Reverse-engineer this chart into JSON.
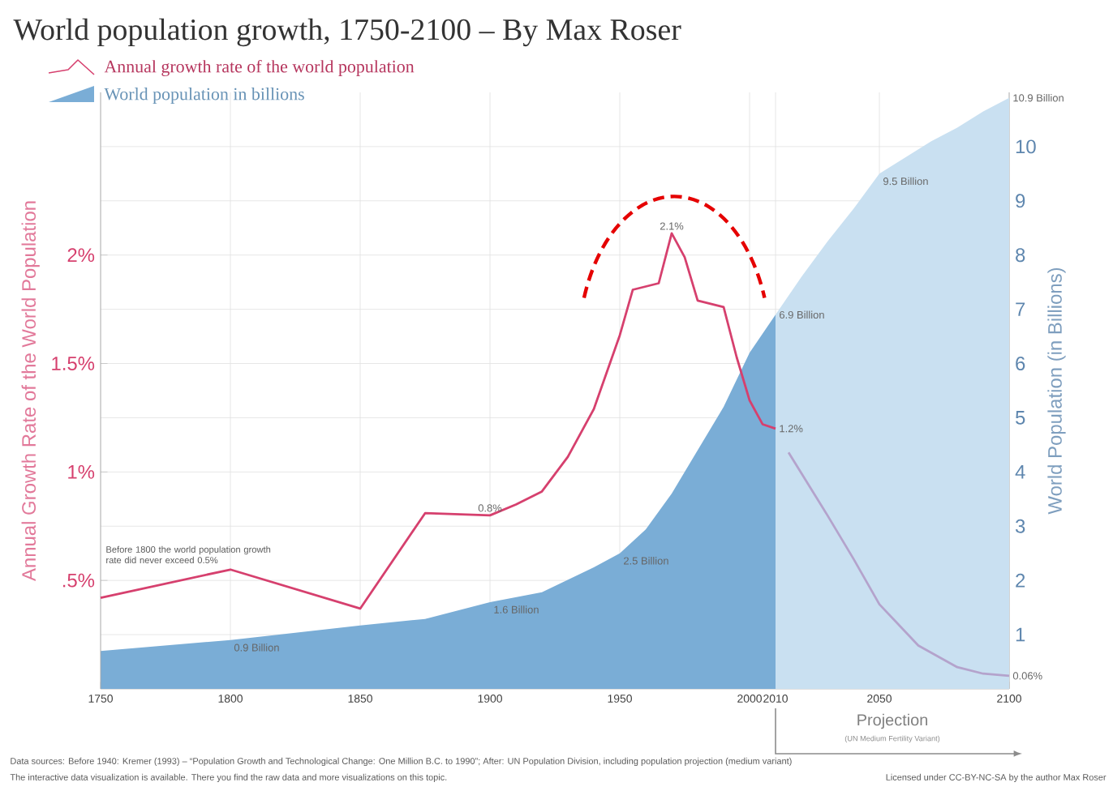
{
  "chart_data": {
    "type": "line",
    "title": "World population growth, 1750-2100 – By Max Roser",
    "ylabel": "Annual Growth Rate of the World Population",
    "y2label": "World Population (in Billions)",
    "xlim": [
      1750,
      2100
    ],
    "xticks": [
      1750,
      1800,
      1850,
      1900,
      1950,
      2000,
      2010,
      2050,
      2100
    ],
    "ylim": [
      0,
      2.75
    ],
    "yticks": [
      {
        "value": 0.5,
        "label": ".5%"
      },
      {
        "value": 1,
        "label": "1%"
      },
      {
        "value": 1.5,
        "label": "1.5%"
      },
      {
        "value": 2,
        "label": "2%"
      }
    ],
    "y2lim": [
      0,
      11
    ],
    "y2ticks": [
      1,
      2,
      3,
      4,
      5,
      6,
      7,
      8,
      9,
      10
    ],
    "grid": true,
    "legend": "top left",
    "series": [
      {
        "name": "Annual growth rate of the world population",
        "color": "#d6406e",
        "x": [
          1750,
          1800,
          1850,
          1875,
          1900,
          1910,
          1920,
          1930,
          1940,
          1950,
          1955,
          1965,
          1970,
          1975,
          1980,
          1990,
          1995,
          2000,
          2005,
          2010
        ],
        "values": [
          0.42,
          0.55,
          0.37,
          0.81,
          0.8,
          0.85,
          0.91,
          1.07,
          1.29,
          1.63,
          1.84,
          1.87,
          2.1,
          1.99,
          1.79,
          1.76,
          1.53,
          1.33,
          1.22,
          1.2
        ],
        "value_labels": [
          null,
          null,
          null,
          null,
          "0.8%",
          null,
          null,
          null,
          null,
          null,
          null,
          null,
          "2.1%",
          null,
          null,
          null,
          null,
          null,
          null,
          "1.2%"
        ]
      },
      {
        "color": "#b4a3cc",
        "x": [
          2015,
          2030,
          2040,
          2050,
          2065,
          2080,
          2090,
          2100
        ],
        "values": [
          1.09,
          0.8,
          0.6,
          0.39,
          0.2,
          0.1,
          0.07,
          0.06
        ],
        "value_labels": [
          null,
          null,
          null,
          null,
          null,
          null,
          null,
          "0.06%"
        ]
      },
      {
        "name": "World population in billions",
        "type": "area",
        "axis": "y2",
        "color": "#7aadd6",
        "x": [
          1750,
          1800,
          1850,
          1875,
          1900,
          1920,
          1940,
          1950,
          1960,
          1970,
          1980,
          1990,
          2000,
          2010
        ],
        "values": [
          0.7,
          0.9,
          1.17,
          1.29,
          1.6,
          1.78,
          2.24,
          2.5,
          2.94,
          3.6,
          4.4,
          5.2,
          6.2,
          6.9
        ],
        "value_labels": [
          null,
          "0.9 Billion",
          null,
          null,
          "1.6 Billion",
          null,
          null,
          "2.5 Billion",
          null,
          null,
          null,
          null,
          null,
          "6.9 Billion"
        ]
      },
      {
        "type": "area",
        "axis": "y2",
        "color": "#c9e0f1",
        "x": [
          2010,
          2020,
          2030,
          2040,
          2050,
          2060,
          2070,
          2080,
          2090,
          2100
        ],
        "values": [
          6.9,
          7.6,
          8.25,
          8.85,
          9.5,
          9.8,
          10.1,
          10.35,
          10.65,
          10.9
        ],
        "value_labels": [
          null,
          null,
          null,
          null,
          "9.5 Billion",
          null,
          null,
          null,
          null,
          "10.9 Billion"
        ]
      }
    ],
    "annotations": [
      "Before 1800 the world population growth rate did never exceed 0.5%",
      "Projection",
      "(UN Medium Fertility Variant)",
      "Data sources: Before 1940: Kremer (1993) – “Population Growth and Technological Change: One Million B.C. to 1990”; After: UN Population Division, including population projection (medium variant)",
      "The interactive data visualization is available. There you find the raw data and more visualizations on this topic.",
      "Licensed under CC-BY-NC-SA by the author Max Roser"
    ]
  }
}
